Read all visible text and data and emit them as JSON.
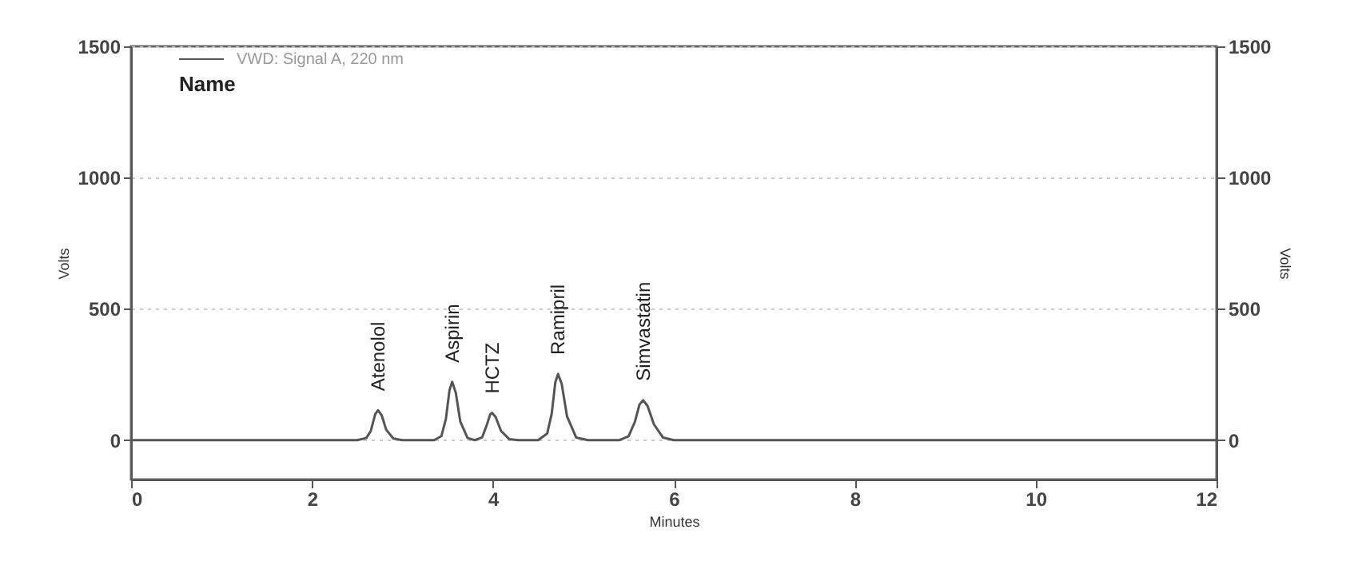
{
  "chart_data": {
    "type": "line",
    "xlabel": "Minutes",
    "ylabel": "Volts",
    "y2label": "Volts",
    "xlim": [
      0,
      12
    ],
    "xticks": [
      0,
      2,
      4,
      6,
      8,
      10,
      12
    ],
    "ylim": [
      -150,
      1500
    ],
    "yticks": [
      0,
      500,
      1000,
      1500
    ],
    "y2lim": [
      -150,
      1500
    ],
    "y2ticks": [
      0,
      500,
      1000,
      1500
    ],
    "grid": "y",
    "legend": "top left",
    "marker": "none",
    "line_style": "solid",
    "series": [
      {
        "name": "VWD: Signal A, 220 nm",
        "color": "#555555",
        "x": [
          0,
          2.5,
          2.6,
          2.65,
          2.7,
          2.73,
          2.77,
          2.82,
          2.9,
          3.0,
          3.35,
          3.43,
          3.48,
          3.52,
          3.55,
          3.59,
          3.64,
          3.72,
          3.8,
          3.88,
          3.93,
          3.97,
          3.99,
          4.03,
          4.09,
          4.18,
          4.28,
          4.5,
          4.6,
          4.65,
          4.69,
          4.72,
          4.76,
          4.82,
          4.92,
          5.05,
          5.4,
          5.5,
          5.57,
          5.62,
          5.66,
          5.71,
          5.78,
          5.88,
          6.0,
          12
        ],
        "values": [
          0,
          0,
          8,
          35,
          100,
          114,
          95,
          40,
          6,
          0,
          0,
          15,
          80,
          190,
          222,
          180,
          70,
          8,
          0,
          10,
          55,
          98,
          104,
          88,
          35,
          4,
          0,
          0,
          25,
          100,
          220,
          252,
          215,
          90,
          10,
          0,
          0,
          15,
          70,
          135,
          152,
          130,
          60,
          10,
          0,
          0
        ]
      }
    ],
    "annotations": [
      "Name",
      {
        "text": "Atenolol",
        "x": 2.73,
        "y": 114
      },
      {
        "text": "Aspirin",
        "x": 3.55,
        "y": 222
      },
      {
        "text": "HCTZ",
        "x": 3.99,
        "y": 104
      },
      {
        "text": "Ramipril",
        "x": 4.72,
        "y": 252
      },
      {
        "text": "Simvastatin",
        "x": 5.66,
        "y": 152
      }
    ]
  }
}
